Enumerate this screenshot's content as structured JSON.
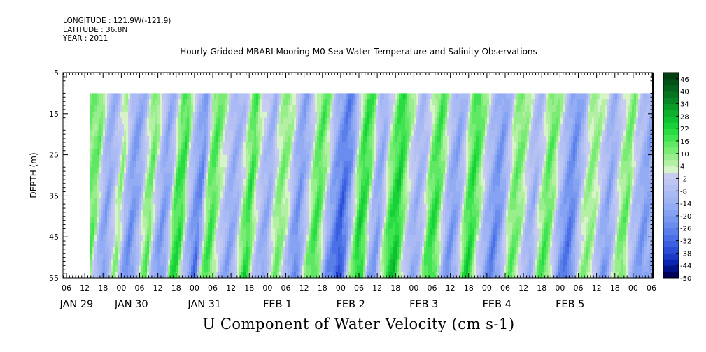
{
  "header": {
    "longitude": "LONGITUDE : 121.9W(-121.9)",
    "latitude": "LATITUDE : 36.8N",
    "year": "YEAR : 2011"
  },
  "chart_data": {
    "type": "heatmap",
    "title": "Hourly Gridded MBARI Mooring M0 Sea Water Temperature and Salinity Observations",
    "xlabel": "U Component of Water Velocity (cm s-1)",
    "ylabel": "DEPTH (m)",
    "y_ticks": [
      5,
      15,
      25,
      35,
      45,
      55
    ],
    "ylim": [
      5,
      55
    ],
    "y_reversed": true,
    "data_depth_range": [
      10,
      55
    ],
    "x_hour_ticks": [
      "06",
      "12",
      "18",
      "00",
      "06",
      "12",
      "18",
      "00",
      "06",
      "12",
      "18",
      "00",
      "06",
      "12",
      "18",
      "00",
      "06",
      "12",
      "18",
      "00",
      "06",
      "12",
      "18",
      "00",
      "06",
      "12",
      "18",
      "00",
      "06",
      "12",
      "18",
      "00",
      "06"
    ],
    "x_day_labels": [
      "JAN 29",
      "JAN 30",
      "JAN 31",
      "FEB  1",
      "FEB  2",
      "FEB  3",
      "FEB  4",
      "FEB  5"
    ],
    "colorbar": {
      "labels": [
        "46",
        "40",
        "34",
        "28",
        "22",
        "16",
        "10",
        "4",
        "-2",
        "-8",
        "-14",
        "-20",
        "-26",
        "-32",
        "-38",
        "-44",
        "-50"
      ],
      "levels": [
        -50,
        -47,
        -44,
        -41,
        -38,
        -35,
        -32,
        -29,
        -26,
        -23,
        -20,
        -17,
        -14,
        -11,
        -8,
        -5,
        -2,
        1,
        4,
        7,
        10,
        13,
        16,
        19,
        22,
        25,
        28,
        31,
        34,
        37,
        40,
        43,
        46,
        49
      ],
      "colors": [
        "#00005a",
        "#001086",
        "#0a24b0",
        "#1a3ac6",
        "#2a4ed6",
        "#3a60e0",
        "#4a6fe6",
        "#5a7eea",
        "#6a8cee",
        "#7898f0",
        "#86a2f2",
        "#94acf4",
        "#a0b4f4",
        "#aabaf4",
        "#b4c0f2",
        "#bec6f2",
        "#c8ccf0",
        "#d6f4c8",
        "#b4f0a4",
        "#98ee8c",
        "#7aec76",
        "#5ee864",
        "#40e452",
        "#28dc42",
        "#18d038",
        "#10c032",
        "#0cb02c",
        "#0a9c28",
        "#088824",
        "#067420",
        "#04621c",
        "#035018",
        "#024014"
      ]
    },
    "u_velocity_by_time_bin": [
      12,
      14,
      -8,
      -16,
      -4,
      10,
      -10,
      -20,
      -12,
      6,
      14,
      -6,
      -18,
      -10,
      16,
      20,
      -4,
      -16,
      -24,
      10,
      18,
      6,
      -6,
      -14,
      -10,
      8,
      20,
      4,
      -8,
      -14,
      4,
      12,
      6,
      -12,
      -20,
      -8,
      10,
      18,
      8,
      -14,
      -22,
      -30,
      -20,
      6,
      22,
      16,
      -10,
      -16,
      4,
      18,
      24,
      10,
      -4,
      -12,
      -6,
      12,
      20,
      8,
      -10,
      -18,
      -8,
      12,
      22,
      10,
      -6,
      -14,
      -22,
      -12,
      6,
      14,
      8,
      -6,
      -12,
      4,
      16,
      10,
      -6,
      -18,
      -24,
      -14,
      4,
      10,
      6,
      -8,
      -16,
      -6,
      8,
      14,
      -4,
      -10,
      -18,
      -10
    ],
    "note_values": "u_velocity_by_time_bin gives approximate near-column-mean U velocity (cm s-1) across the time span of the data, estimated from colours"
  }
}
